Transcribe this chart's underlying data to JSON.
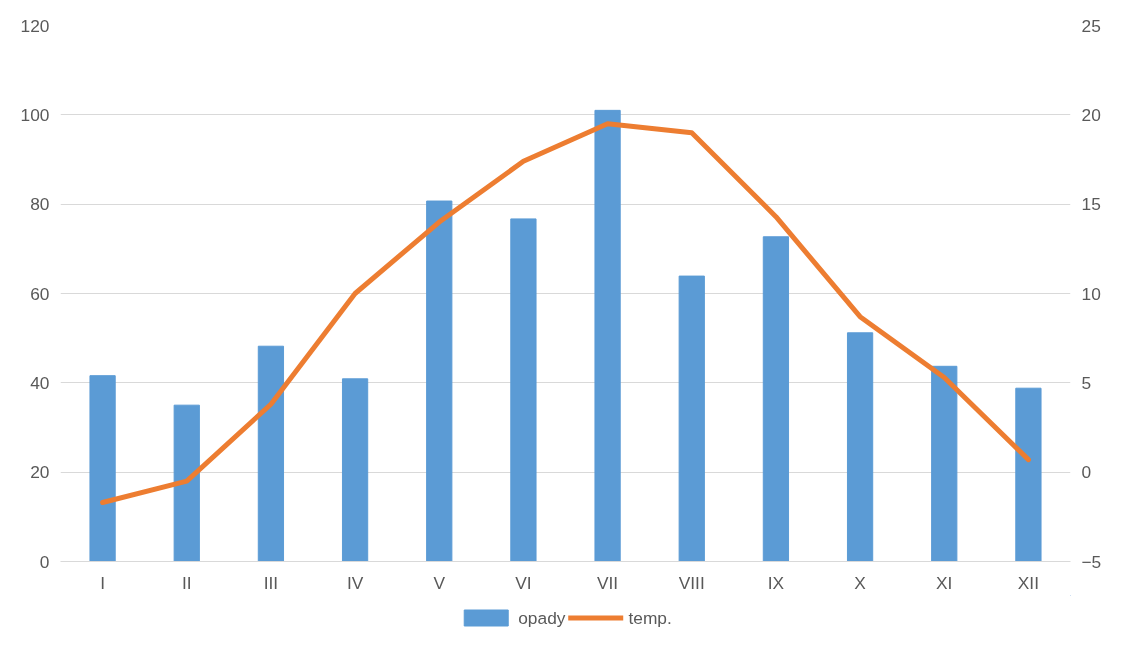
{
  "chart_data": {
    "type": "bar",
    "categories": [
      "I",
      "II",
      "III",
      "IV",
      "V",
      "VI",
      "VII",
      "VIII",
      "IX",
      "X",
      "XI",
      "XII"
    ],
    "series": [
      {
        "name": "opady",
        "color": "#5b9bd5",
        "values": [
          41.6,
          35.0,
          48.2,
          40.9,
          80.7,
          76.7,
          101,
          63.9,
          72.7,
          51.2,
          43.7,
          38.8
        ]
      },
      {
        "name": "temp.",
        "type": "line",
        "axis": "y2",
        "color": "#ed7d31",
        "values": [
          -1.7,
          -0.5,
          3.8,
          10.0,
          14.0,
          17.4,
          19.5,
          19.0,
          14.3,
          8.7,
          5.3,
          0.7
        ]
      }
    ],
    "ylim": [
      0,
      120
    ],
    "yticks": [
      0,
      20,
      40,
      60,
      80,
      100,
      120
    ],
    "y2lim": [
      -5,
      25
    ],
    "y2ticks": [
      -5,
      0,
      5,
      10,
      15,
      20,
      25
    ],
    "grid": "y",
    "legend": "bottom"
  }
}
